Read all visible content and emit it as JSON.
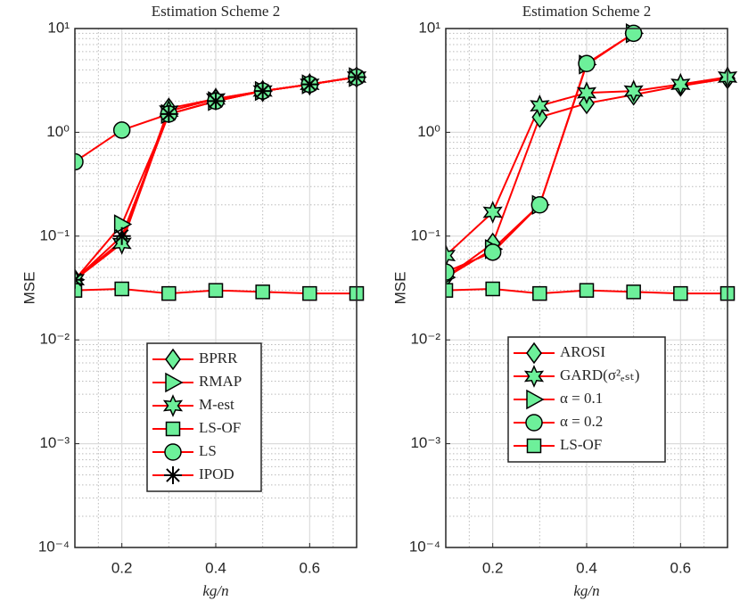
{
  "chart_data": [
    {
      "type": "line",
      "title": "Estimation Scheme 2",
      "x_label": "kg/n",
      "y_label": "MSE",
      "log_y": true,
      "grid": true,
      "legend": "lower center",
      "x": [
        0.1,
        0.2,
        0.3,
        0.4,
        0.5,
        0.6,
        0.7
      ],
      "xlim": [
        0.1,
        0.7
      ],
      "xticks": [
        0.2,
        0.4,
        0.6
      ],
      "ylim": [
        0.0001,
        10
      ],
      "yticks": [
        {
          "value": 0.0001,
          "label": "10⁻⁴"
        },
        {
          "value": 0.001,
          "label": "10⁻³"
        },
        {
          "value": 0.01,
          "label": "10⁻²"
        },
        {
          "value": 0.1,
          "label": "10⁻¹"
        },
        {
          "value": 1,
          "label": "10⁰"
        },
        {
          "value": 10,
          "label": "10¹"
        }
      ],
      "series": [
        {
          "name": "BPRR",
          "marker": "diamond",
          "color": "#ff0000",
          "marker_color": "#6df09a",
          "values": [
            0.038,
            0.09,
            1.7,
            2.1,
            2.5,
            2.9,
            3.4
          ]
        },
        {
          "name": "RMAP",
          "marker": "triangle-right",
          "color": "#ff0000",
          "marker_color": "#6df09a",
          "values": [
            0.038,
            0.13,
            1.5,
            2.0,
            2.5,
            2.9,
            3.4
          ]
        },
        {
          "name": "M-est",
          "marker": "hexagram",
          "color": "#ff0000",
          "marker_color": "#6df09a",
          "values": [
            0.038,
            0.085,
            1.6,
            2.1,
            2.5,
            2.9,
            3.4
          ]
        },
        {
          "name": "LS-OF",
          "marker": "square",
          "color": "#ff0000",
          "marker_color": "#6df09a",
          "values": [
            0.03,
            0.031,
            0.028,
            0.03,
            0.029,
            0.028,
            0.028
          ]
        },
        {
          "name": "LS",
          "marker": "circle",
          "color": "#ff0000",
          "marker_color": "#6df09a",
          "values": [
            0.52,
            1.05,
            1.5,
            2.0,
            2.5,
            2.9,
            3.4
          ]
        },
        {
          "name": "IPOD",
          "marker": "asterisk",
          "color": "#ff0000",
          "marker_color": "#000000",
          "values": [
            0.038,
            0.1,
            1.5,
            2.0,
            2.5,
            2.9,
            3.4
          ]
        }
      ]
    },
    {
      "type": "line",
      "title": "Estimation Scheme 2",
      "x_label": "kg/n",
      "y_label": "MSE",
      "log_y": true,
      "grid": true,
      "legend": "center",
      "x": [
        0.1,
        0.2,
        0.3,
        0.4,
        0.5,
        0.6,
        0.7
      ],
      "xlim": [
        0.1,
        0.7
      ],
      "xticks": [
        0.2,
        0.4,
        0.6
      ],
      "ylim": [
        0.0001,
        10
      ],
      "yticks": [
        {
          "value": 0.0001,
          "label": "10⁻⁴"
        },
        {
          "value": 0.001,
          "label": "10⁻³"
        },
        {
          "value": 0.01,
          "label": "10⁻²"
        },
        {
          "value": 0.1,
          "label": "10⁻¹"
        },
        {
          "value": 1,
          "label": "10⁰"
        },
        {
          "value": 10,
          "label": "10¹"
        }
      ],
      "series": [
        {
          "name": "AROSI",
          "marker": "diamond",
          "color": "#ff0000",
          "marker_color": "#6df09a",
          "values": [
            0.04,
            0.085,
            1.4,
            1.9,
            2.3,
            2.8,
            3.3
          ]
        },
        {
          "name": "GARD(σ²ₑₛₜ)",
          "marker": "hexagram",
          "color": "#ff0000",
          "marker_color": "#6df09a",
          "values": [
            0.065,
            0.17,
            1.8,
            2.4,
            2.5,
            2.9,
            3.4
          ]
        },
        {
          "name": "α = 0.1",
          "marker": "triangle-right",
          "color": "#ff0000",
          "marker_color": "#6df09a",
          "values": [
            0.04,
            0.075,
            0.2,
            4.5,
            9.0,
            null,
            null
          ]
        },
        {
          "name": "α = 0.2",
          "marker": "circle",
          "color": "#ff0000",
          "marker_color": "#6df09a",
          "values": [
            0.045,
            0.07,
            0.2,
            4.6,
            9.0,
            null,
            null
          ]
        },
        {
          "name": "LS-OF",
          "marker": "square",
          "color": "#ff0000",
          "marker_color": "#6df09a",
          "values": [
            0.03,
            0.031,
            0.028,
            0.03,
            0.029,
            0.028,
            0.028
          ]
        }
      ]
    }
  ]
}
